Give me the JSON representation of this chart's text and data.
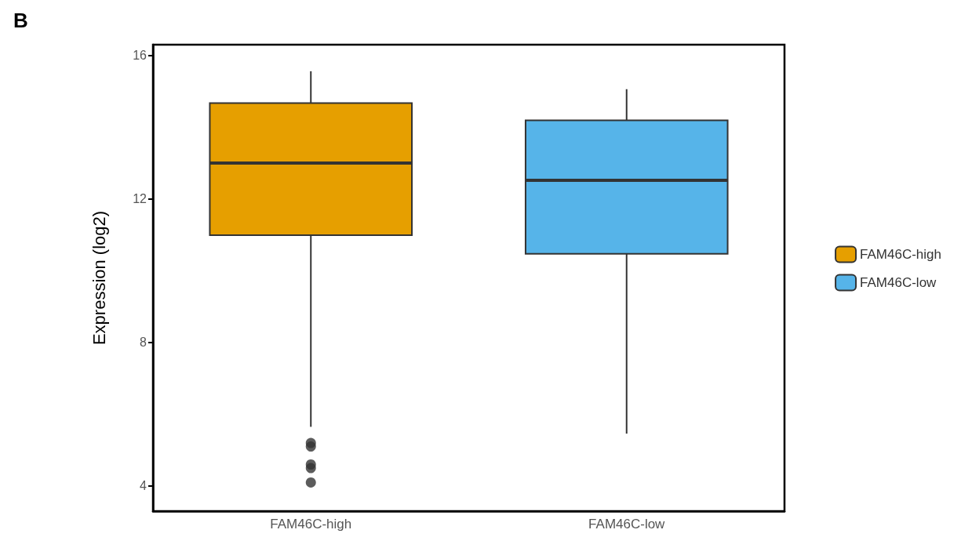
{
  "chart_data": {
    "type": "box",
    "title": "B",
    "ylabel": "Expression (log2)",
    "categories": [
      "FAM46C-high",
      "FAM46C-low"
    ],
    "series": [
      {
        "name": "FAM46C-high",
        "color": "#e69f00",
        "boxes": [
          {
            "low": 5.65,
            "q1": 10.99,
            "median": 13.0,
            "q3": 14.67,
            "high": 15.56,
            "outliers": [
              5.2,
              5.1,
              4.6,
              4.5,
              4.1
            ]
          },
          null
        ]
      },
      {
        "name": "FAM46C-low",
        "color": "#56b4e9",
        "boxes": [
          null,
          {
            "low": 5.46,
            "q1": 10.47,
            "median": 12.52,
            "q3": 14.19,
            "high": 15.06
          }
        ]
      }
    ],
    "ylim": [
      3.3,
      16.3
    ],
    "yticks": [
      4,
      8,
      12,
      16
    ],
    "grid": false,
    "legend": "right"
  }
}
